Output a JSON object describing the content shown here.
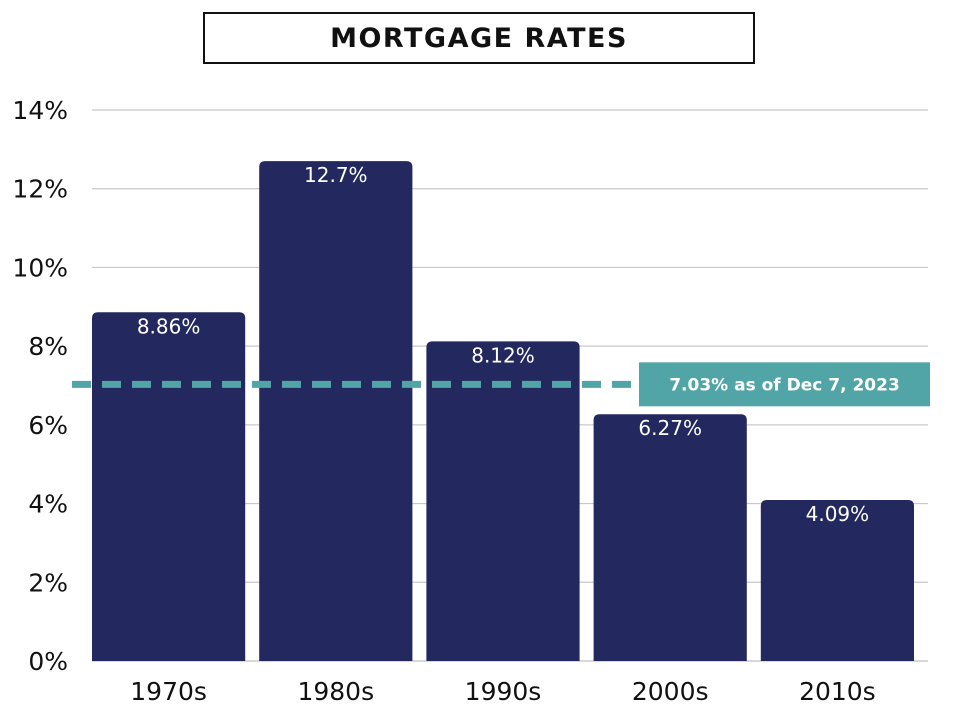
{
  "chart_data": {
    "type": "bar",
    "title": "MORTGAGE RATES",
    "categories": [
      "1970s",
      "1980s",
      "1990s",
      "2000s",
      "2010s"
    ],
    "values": [
      8.86,
      12.7,
      8.12,
      6.27,
      4.09
    ],
    "data_labels": [
      "8.86%",
      "12.7%",
      "8.12%",
      "6.27%",
      "4.09%"
    ],
    "ylim": [
      0,
      14
    ],
    "yticks": [
      0,
      2,
      4,
      6,
      8,
      10,
      12,
      14
    ],
    "ytick_labels": [
      "0%",
      "2%",
      "4%",
      "6%",
      "8%",
      "10%",
      "12%",
      "14%"
    ],
    "xlabel": "",
    "ylabel": "",
    "grid": true,
    "reference_line": {
      "value": 7.03,
      "label": "7.03% as of Dec 7, 2023",
      "style": "dashed"
    },
    "colors": {
      "bar": "#23295e",
      "reference": "#52a5a6",
      "grid": "#c8c8c8"
    }
  }
}
